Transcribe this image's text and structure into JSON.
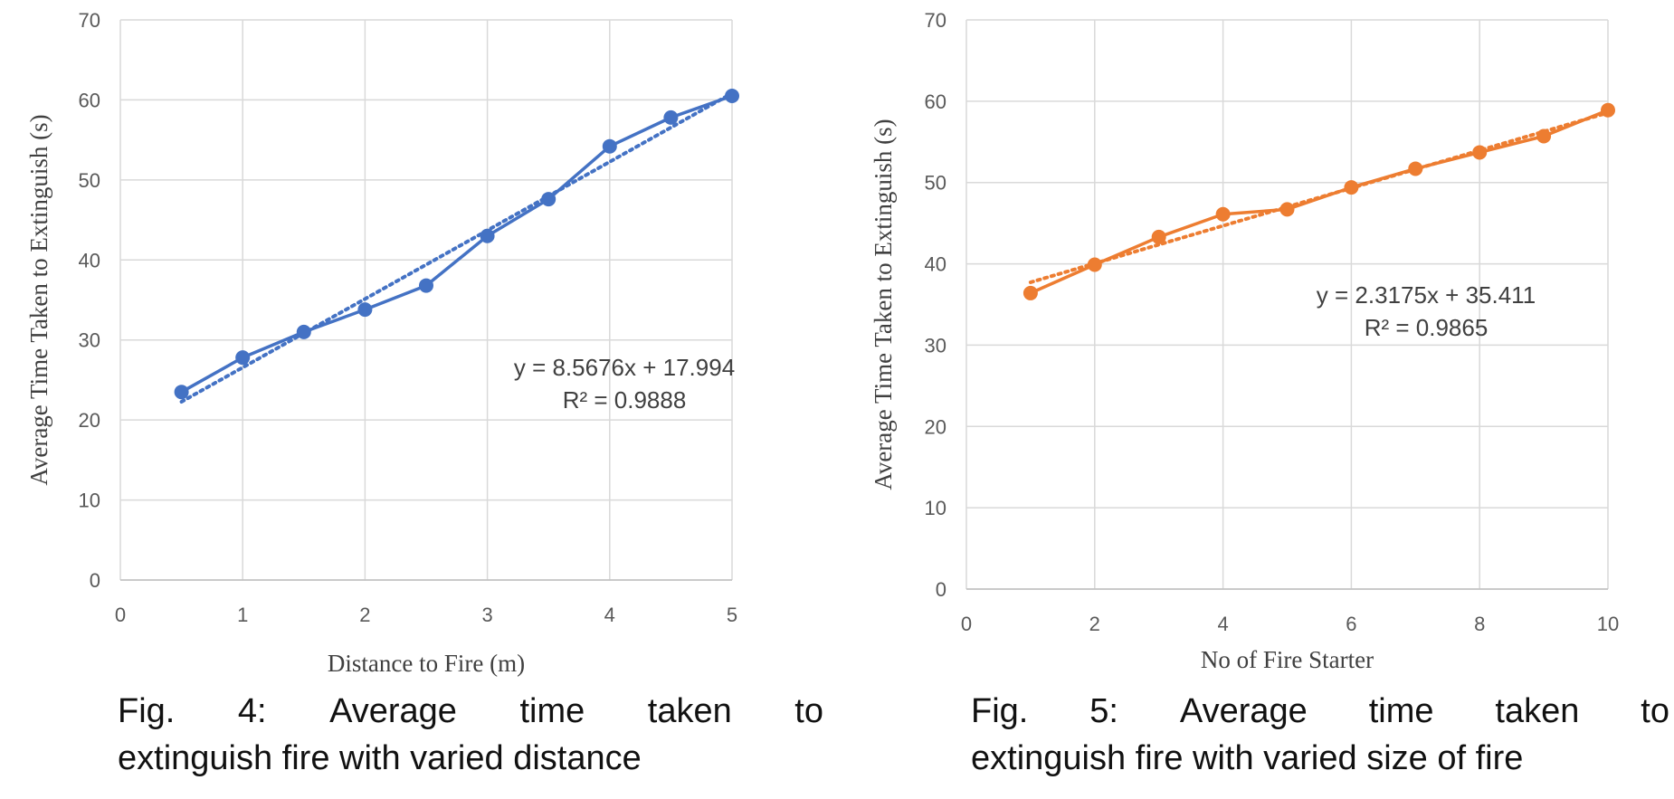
{
  "chart_data": [
    {
      "type": "line",
      "color": "#4472C4",
      "x": [
        0.5,
        1,
        1.5,
        2,
        2.5,
        3,
        3.5,
        4,
        4.5,
        5
      ],
      "series": [
        {
          "values": [
            23.5,
            27.8,
            31,
            33.8,
            36.8,
            43,
            47.6,
            54.2,
            57.8,
            60.5
          ]
        }
      ],
      "trendline": {
        "type": "linear",
        "slope": 8.5676,
        "intercept": 17.994
      },
      "annotations": [
        "y = 8.5676x + 17.994",
        "R² = 0.9888"
      ],
      "xlabel": "Distance to Fire (m)",
      "ylabel": "Average Time Taken to Extinguish (s)",
      "xlim": [
        0,
        5
      ],
      "ylim": [
        0,
        70
      ],
      "x_ticks": [
        "0",
        "1",
        "2",
        "3",
        "4",
        "5"
      ],
      "y_ticks": [
        "0",
        "10",
        "20",
        "30",
        "40",
        "50",
        "60",
        "70"
      ],
      "grid": true
    },
    {
      "type": "line",
      "color": "#ED7D31",
      "x": [
        1,
        2,
        3,
        4,
        5,
        6,
        7,
        8,
        9,
        10
      ],
      "series": [
        {
          "values": [
            36.4,
            39.9,
            43.3,
            46.1,
            46.7,
            49.4,
            51.7,
            53.7,
            55.7,
            58.9
          ]
        }
      ],
      "trendline": {
        "type": "linear",
        "slope": 2.3175,
        "intercept": 35.411
      },
      "annotations": [
        "y = 2.3175x + 35.411",
        "R² = 0.9865"
      ],
      "xlabel": "No of Fire Starter",
      "ylabel": "Average Time Taken to Extinguish (s)",
      "xlim": [
        0,
        10
      ],
      "ylim": [
        0,
        70
      ],
      "x_ticks": [
        "0",
        "2",
        "4",
        "6",
        "8",
        "10"
      ],
      "y_ticks": [
        "0",
        "10",
        "20",
        "30",
        "40",
        "50",
        "60",
        "70"
      ],
      "grid": true
    }
  ],
  "captions": [
    {
      "line1": [
        "Fig.",
        "4:",
        "Average",
        "time",
        "taken",
        "to"
      ],
      "line2": "extinguish fire with varied distance"
    },
    {
      "line1": [
        "Fig.",
        "5:",
        "Average",
        "time",
        "taken",
        "to"
      ],
      "line2": "extinguish fire with varied size of fire"
    }
  ]
}
